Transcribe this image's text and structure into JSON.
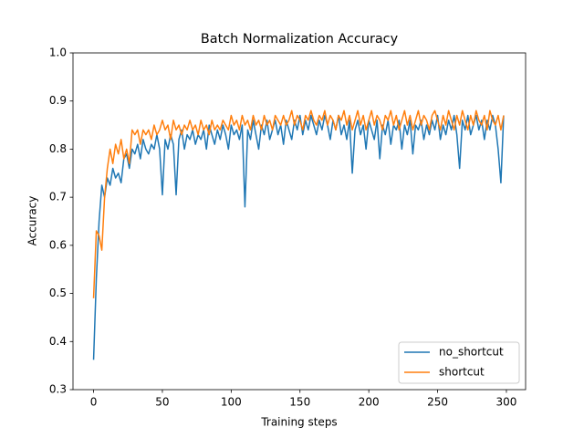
{
  "chart_data": {
    "type": "line",
    "title": "Batch Normalization Accuracy",
    "x_label": "Training steps",
    "y_label": "Accuracy",
    "x": [
      0,
      2,
      4,
      6,
      8,
      10,
      12,
      14,
      16,
      18,
      20,
      22,
      24,
      26,
      28,
      30,
      32,
      34,
      36,
      38,
      40,
      42,
      44,
      46,
      48,
      50,
      52,
      54,
      56,
      58,
      60,
      62,
      64,
      66,
      68,
      70,
      72,
      74,
      76,
      78,
      80,
      82,
      84,
      86,
      88,
      90,
      92,
      94,
      96,
      98,
      100,
      102,
      104,
      106,
      108,
      110,
      112,
      114,
      116,
      118,
      120,
      122,
      124,
      126,
      128,
      130,
      132,
      134,
      136,
      138,
      140,
      142,
      144,
      146,
      148,
      150,
      152,
      154,
      156,
      158,
      160,
      162,
      164,
      166,
      168,
      170,
      172,
      174,
      176,
      178,
      180,
      182,
      184,
      186,
      188,
      190,
      192,
      194,
      196,
      198,
      200,
      202,
      204,
      206,
      208,
      210,
      212,
      214,
      216,
      218,
      220,
      222,
      224,
      226,
      228,
      230,
      232,
      234,
      236,
      238,
      240,
      242,
      244,
      246,
      248,
      250,
      252,
      254,
      256,
      258,
      260,
      262,
      264,
      266,
      268,
      270,
      272,
      274,
      276,
      278,
      280,
      282,
      284,
      286,
      288,
      290,
      292,
      294,
      296,
      298
    ],
    "series": [
      {
        "name": "no_shortcut",
        "color": "#1f77b4",
        "values": [
          0.362,
          0.53,
          0.65,
          0.725,
          0.7,
          0.74,
          0.725,
          0.76,
          0.74,
          0.75,
          0.73,
          0.78,
          0.79,
          0.76,
          0.8,
          0.79,
          0.81,
          0.78,
          0.82,
          0.8,
          0.79,
          0.81,
          0.8,
          0.83,
          0.8,
          0.705,
          0.82,
          0.8,
          0.83,
          0.81,
          0.705,
          0.82,
          0.84,
          0.8,
          0.83,
          0.82,
          0.84,
          0.81,
          0.83,
          0.82,
          0.84,
          0.8,
          0.85,
          0.83,
          0.81,
          0.84,
          0.82,
          0.85,
          0.83,
          0.8,
          0.85,
          0.83,
          0.84,
          0.82,
          0.85,
          0.68,
          0.84,
          0.82,
          0.86,
          0.83,
          0.8,
          0.85,
          0.83,
          0.86,
          0.82,
          0.84,
          0.86,
          0.83,
          0.85,
          0.81,
          0.86,
          0.84,
          0.82,
          0.86,
          0.84,
          0.87,
          0.83,
          0.86,
          0.84,
          0.87,
          0.85,
          0.83,
          0.86,
          0.84,
          0.87,
          0.85,
          0.82,
          0.86,
          0.84,
          0.87,
          0.83,
          0.85,
          0.82,
          0.86,
          0.75,
          0.84,
          0.86,
          0.83,
          0.85,
          0.8,
          0.86,
          0.84,
          0.82,
          0.86,
          0.78,
          0.85,
          0.83,
          0.86,
          0.81,
          0.85,
          0.84,
          0.86,
          0.8,
          0.85,
          0.83,
          0.86,
          0.79,
          0.85,
          0.84,
          0.86,
          0.82,
          0.85,
          0.83,
          0.86,
          0.84,
          0.87,
          0.82,
          0.85,
          0.83,
          0.86,
          0.84,
          0.87,
          0.83,
          0.76,
          0.86,
          0.84,
          0.87,
          0.83,
          0.85,
          0.87,
          0.84,
          0.86,
          0.82,
          0.86,
          0.84,
          0.87,
          0.85,
          0.8,
          0.73,
          0.87
        ]
      },
      {
        "name": "shortcut",
        "color": "#ff7f0e",
        "values": [
          0.49,
          0.63,
          0.62,
          0.59,
          0.7,
          0.76,
          0.8,
          0.77,
          0.81,
          0.79,
          0.82,
          0.78,
          0.8,
          0.77,
          0.84,
          0.83,
          0.84,
          0.81,
          0.84,
          0.83,
          0.84,
          0.82,
          0.85,
          0.83,
          0.84,
          0.86,
          0.84,
          0.85,
          0.82,
          0.86,
          0.84,
          0.85,
          0.83,
          0.85,
          0.84,
          0.86,
          0.84,
          0.85,
          0.83,
          0.86,
          0.84,
          0.85,
          0.83,
          0.86,
          0.84,
          0.85,
          0.84,
          0.86,
          0.85,
          0.84,
          0.87,
          0.85,
          0.86,
          0.84,
          0.87,
          0.85,
          0.86,
          0.84,
          0.87,
          0.85,
          0.86,
          0.84,
          0.87,
          0.85,
          0.86,
          0.84,
          0.87,
          0.86,
          0.85,
          0.87,
          0.85,
          0.86,
          0.88,
          0.85,
          0.87,
          0.86,
          0.84,
          0.87,
          0.86,
          0.88,
          0.86,
          0.85,
          0.87,
          0.86,
          0.88,
          0.85,
          0.87,
          0.86,
          0.84,
          0.87,
          0.86,
          0.88,
          0.85,
          0.87,
          0.84,
          0.86,
          0.88,
          0.85,
          0.87,
          0.84,
          0.86,
          0.88,
          0.85,
          0.87,
          0.86,
          0.84,
          0.87,
          0.86,
          0.88,
          0.85,
          0.87,
          0.84,
          0.86,
          0.88,
          0.85,
          0.87,
          0.84,
          0.86,
          0.88,
          0.85,
          0.87,
          0.86,
          0.84,
          0.87,
          0.88,
          0.86,
          0.84,
          0.87,
          0.85,
          0.88,
          0.86,
          0.84,
          0.87,
          0.85,
          0.88,
          0.86,
          0.84,
          0.87,
          0.85,
          0.88,
          0.86,
          0.85,
          0.87,
          0.84,
          0.88,
          0.86,
          0.85,
          0.87,
          0.84,
          0.87
        ]
      }
    ],
    "xlim": [
      -14.95,
      313.95
    ],
    "xticks": [
      0,
      50,
      100,
      150,
      200,
      250,
      300
    ],
    "ylim": [
      0.3,
      1.0
    ],
    "yticks": [
      0.3,
      0.4,
      0.5,
      0.6,
      0.7,
      0.8,
      0.9,
      {
        "value": 1.0,
        "label": "1.0"
      }
    ],
    "legend": "lower right"
  }
}
